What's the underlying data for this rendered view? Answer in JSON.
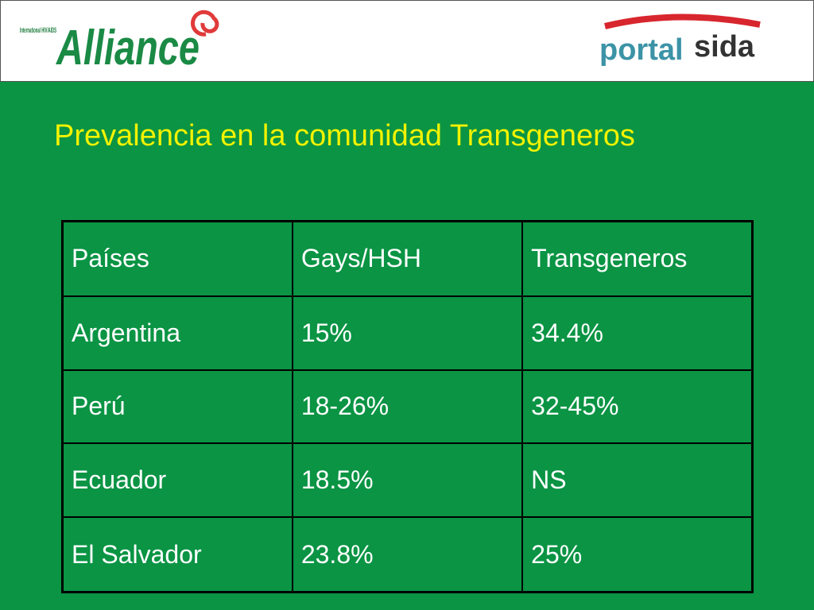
{
  "header": {
    "left_logo": {
      "small_text": "International HIV/AIDS",
      "name": "Alliance"
    },
    "right_logo": {
      "part1": "portal",
      "part2": "sida"
    }
  },
  "title": "Prevalencia en la comunidad Transgeneros",
  "table": {
    "columns": [
      "Países",
      "Gays/HSH",
      "Transgeneros"
    ],
    "rows": [
      [
        "Argentina",
        "15%",
        "34.4%"
      ],
      [
        "Perú",
        "18-26%",
        "32-45%"
      ],
      [
        "Ecuador",
        "18.5%",
        "NS"
      ],
      [
        "El Salvador",
        "23.8%",
        "25%"
      ]
    ]
  }
}
